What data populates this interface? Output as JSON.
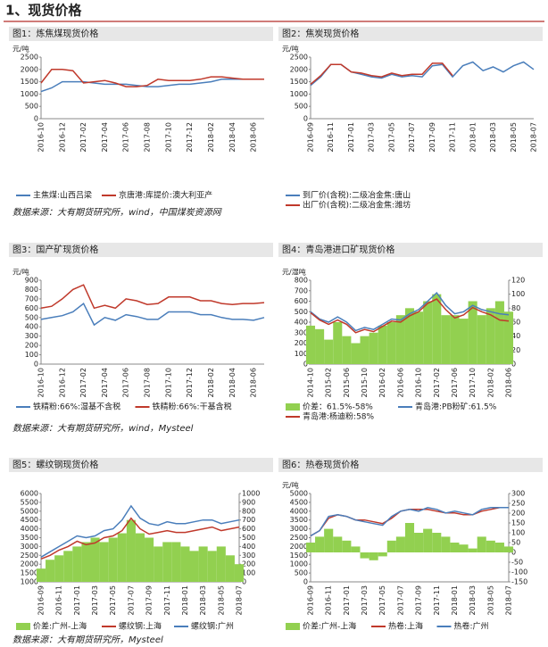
{
  "header": {
    "title": "1、现货价格"
  },
  "sources": [
    "数据来源：大有期货研究所，wind，中国煤炭资源网",
    "数据来源：大有期货研究所，wind，Mysteel",
    "数据来源：大有期货研究所，Mysteel"
  ],
  "chart_data": [
    {
      "type": "line",
      "title": "图1：炼焦煤现货价格",
      "ylabel": "元/吨",
      "categories": [
        "2016-10",
        null,
        "2016-12",
        null,
        "2017-02",
        null,
        "2017-04",
        null,
        "2017-06",
        null,
        "2017-08",
        null,
        "2017-10",
        null,
        "2017-12",
        null,
        "2018-02",
        null,
        "2018-04",
        null,
        "2018-06",
        null
      ],
      "ylim": [
        0,
        2500
      ],
      "yticks": [
        0,
        500,
        1000,
        1500,
        2000,
        2500
      ],
      "series": [
        {
          "name": "主焦煤:山西吕梁",
          "color": "#4a7ebb",
          "values": [
            1100,
            1250,
            1500,
            1500,
            1500,
            1450,
            1400,
            1400,
            1400,
            1350,
            1300,
            1300,
            1350,
            1400,
            1400,
            1450,
            1500,
            1600,
            1600,
            1600,
            1600,
            1600
          ]
        },
        {
          "name": "京唐港:库提价:澳大利亚产",
          "color": "#c0392b",
          "values": [
            1450,
            2000,
            2000,
            1950,
            1450,
            1500,
            1550,
            1450,
            1300,
            1300,
            1350,
            1600,
            1550,
            1550,
            1550,
            1600,
            1700,
            1700,
            1650,
            1600,
            1600,
            1600
          ]
        }
      ]
    },
    {
      "type": "line",
      "title": "图2：焦炭现货价格",
      "ylabel": "元/吨",
      "categories": [
        "2016-09",
        null,
        "2016-11",
        null,
        "2017-01",
        null,
        "2017-03",
        null,
        "2017-05",
        null,
        "2017-07",
        null,
        "2017-09",
        null,
        "2017-11",
        null,
        "2018-01",
        null,
        "2018-03",
        null,
        "2018-05",
        null,
        "2018-07"
      ],
      "ylim": [
        0,
        2500
      ],
      "yticks": [
        0,
        500,
        1000,
        1500,
        2000,
        2500
      ],
      "series": [
        {
          "name": "到厂价(含税):二级冶金焦:唐山",
          "color": "#4a7ebb",
          "values": [
            1350,
            1700,
            2200,
            2200,
            1900,
            1800,
            1700,
            1650,
            1800,
            1700,
            1750,
            1700,
            2150,
            2200,
            1700,
            2150,
            2300,
            1950,
            2100,
            1900,
            2150,
            2300,
            2000
          ]
        },
        {
          "name": "出厂价(含税):二级冶金焦:潍坊",
          "color": "#c0392b",
          "values": [
            1400,
            1750,
            2200,
            2200,
            1900,
            1850,
            1750,
            1700,
            1850,
            1750,
            1800,
            1800,
            2250,
            2250,
            1750,
            null,
            null,
            null,
            null,
            null,
            null,
            null,
            null
          ]
        }
      ]
    },
    {
      "type": "line",
      "title": "图3：国产矿现货价格",
      "ylabel": "元/吨",
      "categories": [
        "2016-10",
        null,
        "2016-12",
        null,
        "2017-02",
        null,
        "2017-04",
        null,
        "2017-06",
        null,
        "2017-08",
        null,
        "2017-10",
        null,
        "2017-12",
        null,
        "2018-02",
        null,
        "2018-04",
        null,
        "2018-06",
        null
      ],
      "ylim": [
        0,
        900
      ],
      "yticks": [
        0,
        100,
        200,
        300,
        400,
        500,
        600,
        700,
        800,
        900
      ],
      "series": [
        {
          "name": "铁精粉:66%:湿基不含税",
          "color": "#4a7ebb",
          "values": [
            480,
            500,
            520,
            560,
            650,
            420,
            500,
            470,
            530,
            510,
            480,
            480,
            560,
            560,
            560,
            530,
            530,
            500,
            480,
            480,
            470,
            500
          ]
        },
        {
          "name": "铁精粉:66%:干基含税",
          "color": "#c0392b",
          "values": [
            600,
            620,
            700,
            800,
            850,
            600,
            630,
            600,
            700,
            680,
            640,
            650,
            720,
            720,
            720,
            680,
            680,
            650,
            640,
            650,
            650,
            660
          ]
        }
      ]
    },
    {
      "type": "combo",
      "title": "图4：青岛港进口矿现货价格",
      "ylabel": "元/湿吨",
      "categories": [
        "2014-10",
        null,
        "2015-02",
        null,
        "2015-06",
        null,
        "2015-10",
        null,
        "2016-02",
        null,
        "2016-06",
        null,
        "2016-10",
        null,
        "2017-02",
        null,
        "2017-06",
        null,
        "2017-10",
        null,
        "2018-02",
        null,
        "2018-06"
      ],
      "ylim": [
        0,
        800
      ],
      "yticks": [
        0,
        100,
        200,
        300,
        400,
        500,
        600,
        700,
        800
      ],
      "y2lim": [
        0,
        120
      ],
      "y2ticks": [
        0,
        20,
        40,
        60,
        80,
        100,
        120
      ],
      "series": [
        {
          "name": "价差：61.5%-58%",
          "color": "#92d050",
          "type": "area",
          "axis": "y2",
          "values": [
            55,
            50,
            35,
            60,
            40,
            30,
            40,
            45,
            55,
            60,
            70,
            80,
            75,
            90,
            100,
            70,
            70,
            65,
            90,
            70,
            80,
            90,
            75
          ]
        },
        {
          "name": "青岛港:PB粉矿:61.5%",
          "color": "#4a7ebb",
          "values": [
            500,
            430,
            400,
            450,
            400,
            320,
            350,
            330,
            380,
            430,
            420,
            480,
            520,
            600,
            680,
            560,
            480,
            500,
            560,
            520,
            500,
            480,
            470
          ]
        },
        {
          "name": "青岛港:杨迪粉:58%",
          "color": "#c0392b",
          "values": [
            490,
            420,
            380,
            420,
            380,
            300,
            330,
            310,
            360,
            410,
            400,
            460,
            500,
            580,
            620,
            520,
            440,
            470,
            540,
            500,
            470,
            420,
            410
          ]
        }
      ]
    },
    {
      "type": "combo",
      "title": "图5：螺纹钢现货价格",
      "categories": [
        "2016-09",
        null,
        "2016-11",
        null,
        "2017-01",
        null,
        "2017-03",
        null,
        "2017-05",
        null,
        "2017-07",
        null,
        "2017-09",
        null,
        "2017-11",
        null,
        "2018-01",
        null,
        "2018-03",
        null,
        "2018-05",
        null,
        "2018-07"
      ],
      "ylim": [
        1000,
        6000
      ],
      "yticks": [
        1000,
        1500,
        2000,
        2500,
        3000,
        3500,
        4000,
        4500,
        5000,
        5500,
        6000
      ],
      "y2lim": [
        0,
        1000
      ],
      "y2ticks": [
        0,
        100,
        200,
        300,
        400,
        500,
        600,
        700,
        800,
        900,
        1000
      ],
      "series": [
        {
          "name": "价差:广州-上海",
          "color": "#92d050",
          "type": "area",
          "axis": "y2",
          "values": [
            150,
            250,
            300,
            350,
            400,
            450,
            500,
            450,
            500,
            550,
            700,
            550,
            500,
            400,
            450,
            450,
            400,
            350,
            400,
            350,
            400,
            300,
            200
          ]
        },
        {
          "name": "螺纹钢:上海",
          "color": "#c0392b",
          "values": [
            2300,
            2500,
            2800,
            3000,
            3300,
            3100,
            3200,
            3500,
            3600,
            3900,
            4600,
            4000,
            3700,
            3800,
            3900,
            3800,
            3800,
            3900,
            4000,
            4100,
            3900,
            4000,
            4100
          ]
        },
        {
          "name": "螺纹钢:广州",
          "color": "#4a7ebb",
          "values": [
            2400,
            2700,
            3000,
            3300,
            3600,
            3500,
            3600,
            3900,
            4000,
            4500,
            5300,
            4600,
            4300,
            4200,
            4400,
            4300,
            4300,
            4400,
            4500,
            4500,
            4300,
            4400,
            4500
          ]
        }
      ]
    },
    {
      "type": "combo",
      "title": "图6：热卷现货价格",
      "ylabel": "元/吨",
      "categories": [
        "2016-09",
        null,
        "2016-11",
        null,
        "2017-01",
        null,
        "2017-03",
        null,
        "2017-05",
        null,
        "2017-07",
        null,
        "2017-09",
        null,
        "2017-11",
        null,
        "2018-01",
        null,
        "2018-03",
        null,
        "2018-05",
        null,
        "2018-07"
      ],
      "ylim": [
        0,
        5000
      ],
      "yticks": [
        0,
        500,
        1000,
        1500,
        2000,
        2500,
        3000,
        3500,
        4000,
        4500,
        5000
      ],
      "y2lim": [
        -150,
        300
      ],
      "y2ticks": [
        -150,
        -100,
        -50,
        0,
        50,
        100,
        150,
        200,
        250,
        300
      ],
      "series": [
        {
          "name": "价差:广州-上海",
          "color": "#92d050",
          "type": "area",
          "axis": "y2",
          "values": [
            50,
            80,
            120,
            80,
            60,
            30,
            -30,
            -40,
            -20,
            60,
            80,
            150,
            100,
            120,
            100,
            80,
            50,
            40,
            20,
            80,
            60,
            50,
            30
          ]
        },
        {
          "name": "热卷:上海",
          "color": "#c0392b",
          "values": [
            2600,
            2900,
            3600,
            3800,
            3700,
            3500,
            3500,
            3400,
            3300,
            3600,
            4000,
            4100,
            4100,
            4100,
            4000,
            3900,
            3900,
            3800,
            3800,
            4000,
            4100,
            4200,
            4200
          ]
        },
        {
          "name": "热卷:广州",
          "color": "#4a7ebb",
          "values": [
            2600,
            2900,
            3700,
            3800,
            3700,
            3500,
            3400,
            3300,
            3200,
            3700,
            4000,
            4100,
            4000,
            4200,
            4100,
            3900,
            4000,
            3900,
            3800,
            4100,
            4200,
            4200,
            4200
          ]
        }
      ]
    }
  ]
}
